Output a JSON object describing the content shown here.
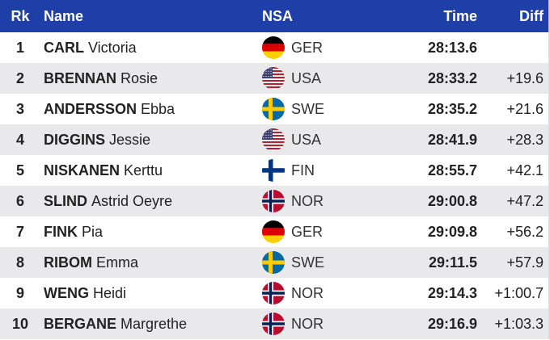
{
  "header": {
    "rank": "Rk",
    "name": "Name",
    "nsa": "NSA",
    "time": "Time",
    "diff": "Diff"
  },
  "rows": [
    {
      "rank": "1",
      "last": "CARL",
      "first": "Victoria",
      "nsa": "GER",
      "flag": "ger-flag-icon",
      "time": "28:13.6",
      "diff": ""
    },
    {
      "rank": "2",
      "last": "BRENNAN",
      "first": "Rosie",
      "nsa": "USA",
      "flag": "usa-flag-icon",
      "time": "28:33.2",
      "diff": "+19.6"
    },
    {
      "rank": "3",
      "last": "ANDERSSON",
      "first": "Ebba",
      "nsa": "SWE",
      "flag": "swe-flag-icon",
      "time": "28:35.2",
      "diff": "+21.6"
    },
    {
      "rank": "4",
      "last": "DIGGINS",
      "first": "Jessie",
      "nsa": "USA",
      "flag": "usa-flag-icon",
      "time": "28:41.9",
      "diff": "+28.3"
    },
    {
      "rank": "5",
      "last": "NISKANEN",
      "first": "Kerttu",
      "nsa": "FIN",
      "flag": "fin-flag-icon",
      "time": "28:55.7",
      "diff": "+42.1"
    },
    {
      "rank": "6",
      "last": "SLIND",
      "first": "Astrid Oeyre",
      "nsa": "NOR",
      "flag": "nor-flag-icon",
      "time": "29:00.8",
      "diff": "+47.2"
    },
    {
      "rank": "7",
      "last": "FINK",
      "first": "Pia",
      "nsa": "GER",
      "flag": "ger-flag-icon",
      "time": "29:09.8",
      "diff": "+56.2"
    },
    {
      "rank": "8",
      "last": "RIBOM",
      "first": "Emma",
      "nsa": "SWE",
      "flag": "swe-flag-icon",
      "time": "29:11.5",
      "diff": "+57.9"
    },
    {
      "rank": "9",
      "last": "WENG",
      "first": "Heidi",
      "nsa": "NOR",
      "flag": "nor-flag-icon",
      "time": "29:14.3",
      "diff": "+1:00.7"
    },
    {
      "rank": "10",
      "last": "BERGANE",
      "first": "Margrethe",
      "nsa": "NOR",
      "flag": "nor-flag-icon",
      "time": "29:16.9",
      "diff": "+1:03.3"
    }
  ],
  "colors": {
    "header_bg": "#1f3fa8",
    "alt_row_bg": "#e9e9ec"
  }
}
